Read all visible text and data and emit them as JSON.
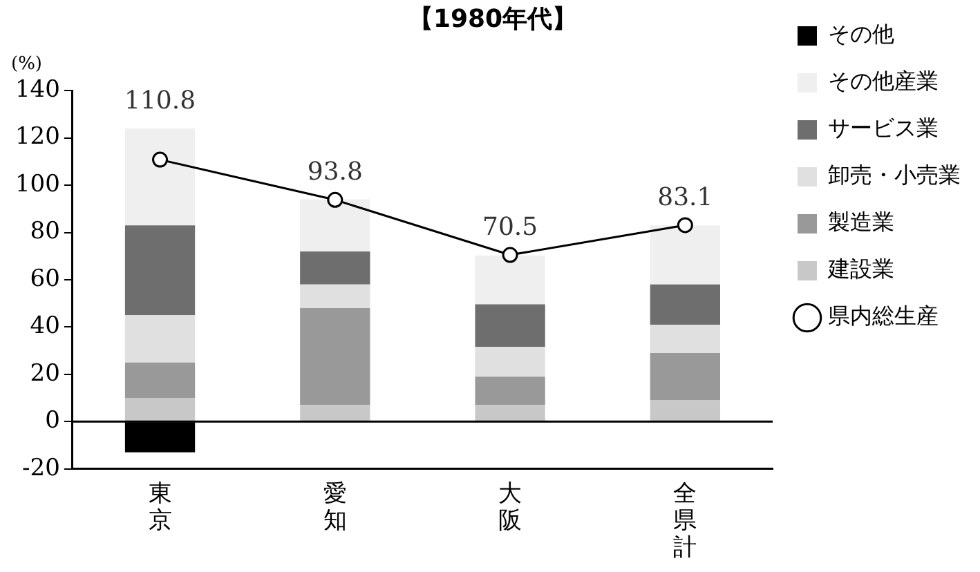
{
  "chart_data": {
    "type": "bar",
    "title": "【1980年代】",
    "ylabel": "(%)",
    "stacked": true,
    "categories": [
      "東京",
      "愛知",
      "大阪",
      "全県計"
    ],
    "series": [
      {
        "name": "建設業",
        "color": "#c8c8c8",
        "values": [
          10,
          7,
          7,
          9
        ]
      },
      {
        "name": "製造業",
        "color": "#999999",
        "values": [
          15,
          41,
          12,
          20
        ]
      },
      {
        "name": "卸売・小売業",
        "color": "#e0e0e0",
        "values": [
          20,
          10,
          12.6,
          12
        ]
      },
      {
        "name": "サービス業",
        "color": "#6e6e6e",
        "values": [
          38,
          14,
          18,
          17
        ]
      },
      {
        "name": "その他産業",
        "color": "#efefef",
        "values": [
          41,
          22,
          20.7,
          25
        ]
      },
      {
        "name": "その他",
        "color": "#000000",
        "values": [
          -13,
          null,
          null,
          null
        ]
      },
      {
        "name": "県内総生産",
        "type": "line",
        "color": "#000000",
        "marker": "circle",
        "values": [
          110.8,
          93.8,
          70.5,
          83.1
        ],
        "value_labels": [
          "110.8",
          "93.8",
          "70.5",
          "83.1"
        ]
      }
    ],
    "ylim": [
      -20,
      140
    ],
    "yticks": [
      -20,
      0,
      20,
      40,
      60,
      80,
      100,
      120,
      140
    ],
    "grid": false,
    "legend": "right",
    "ref_lines": [
      {
        "axis": "y",
        "value": 0,
        "color": "#000000"
      }
    ]
  }
}
